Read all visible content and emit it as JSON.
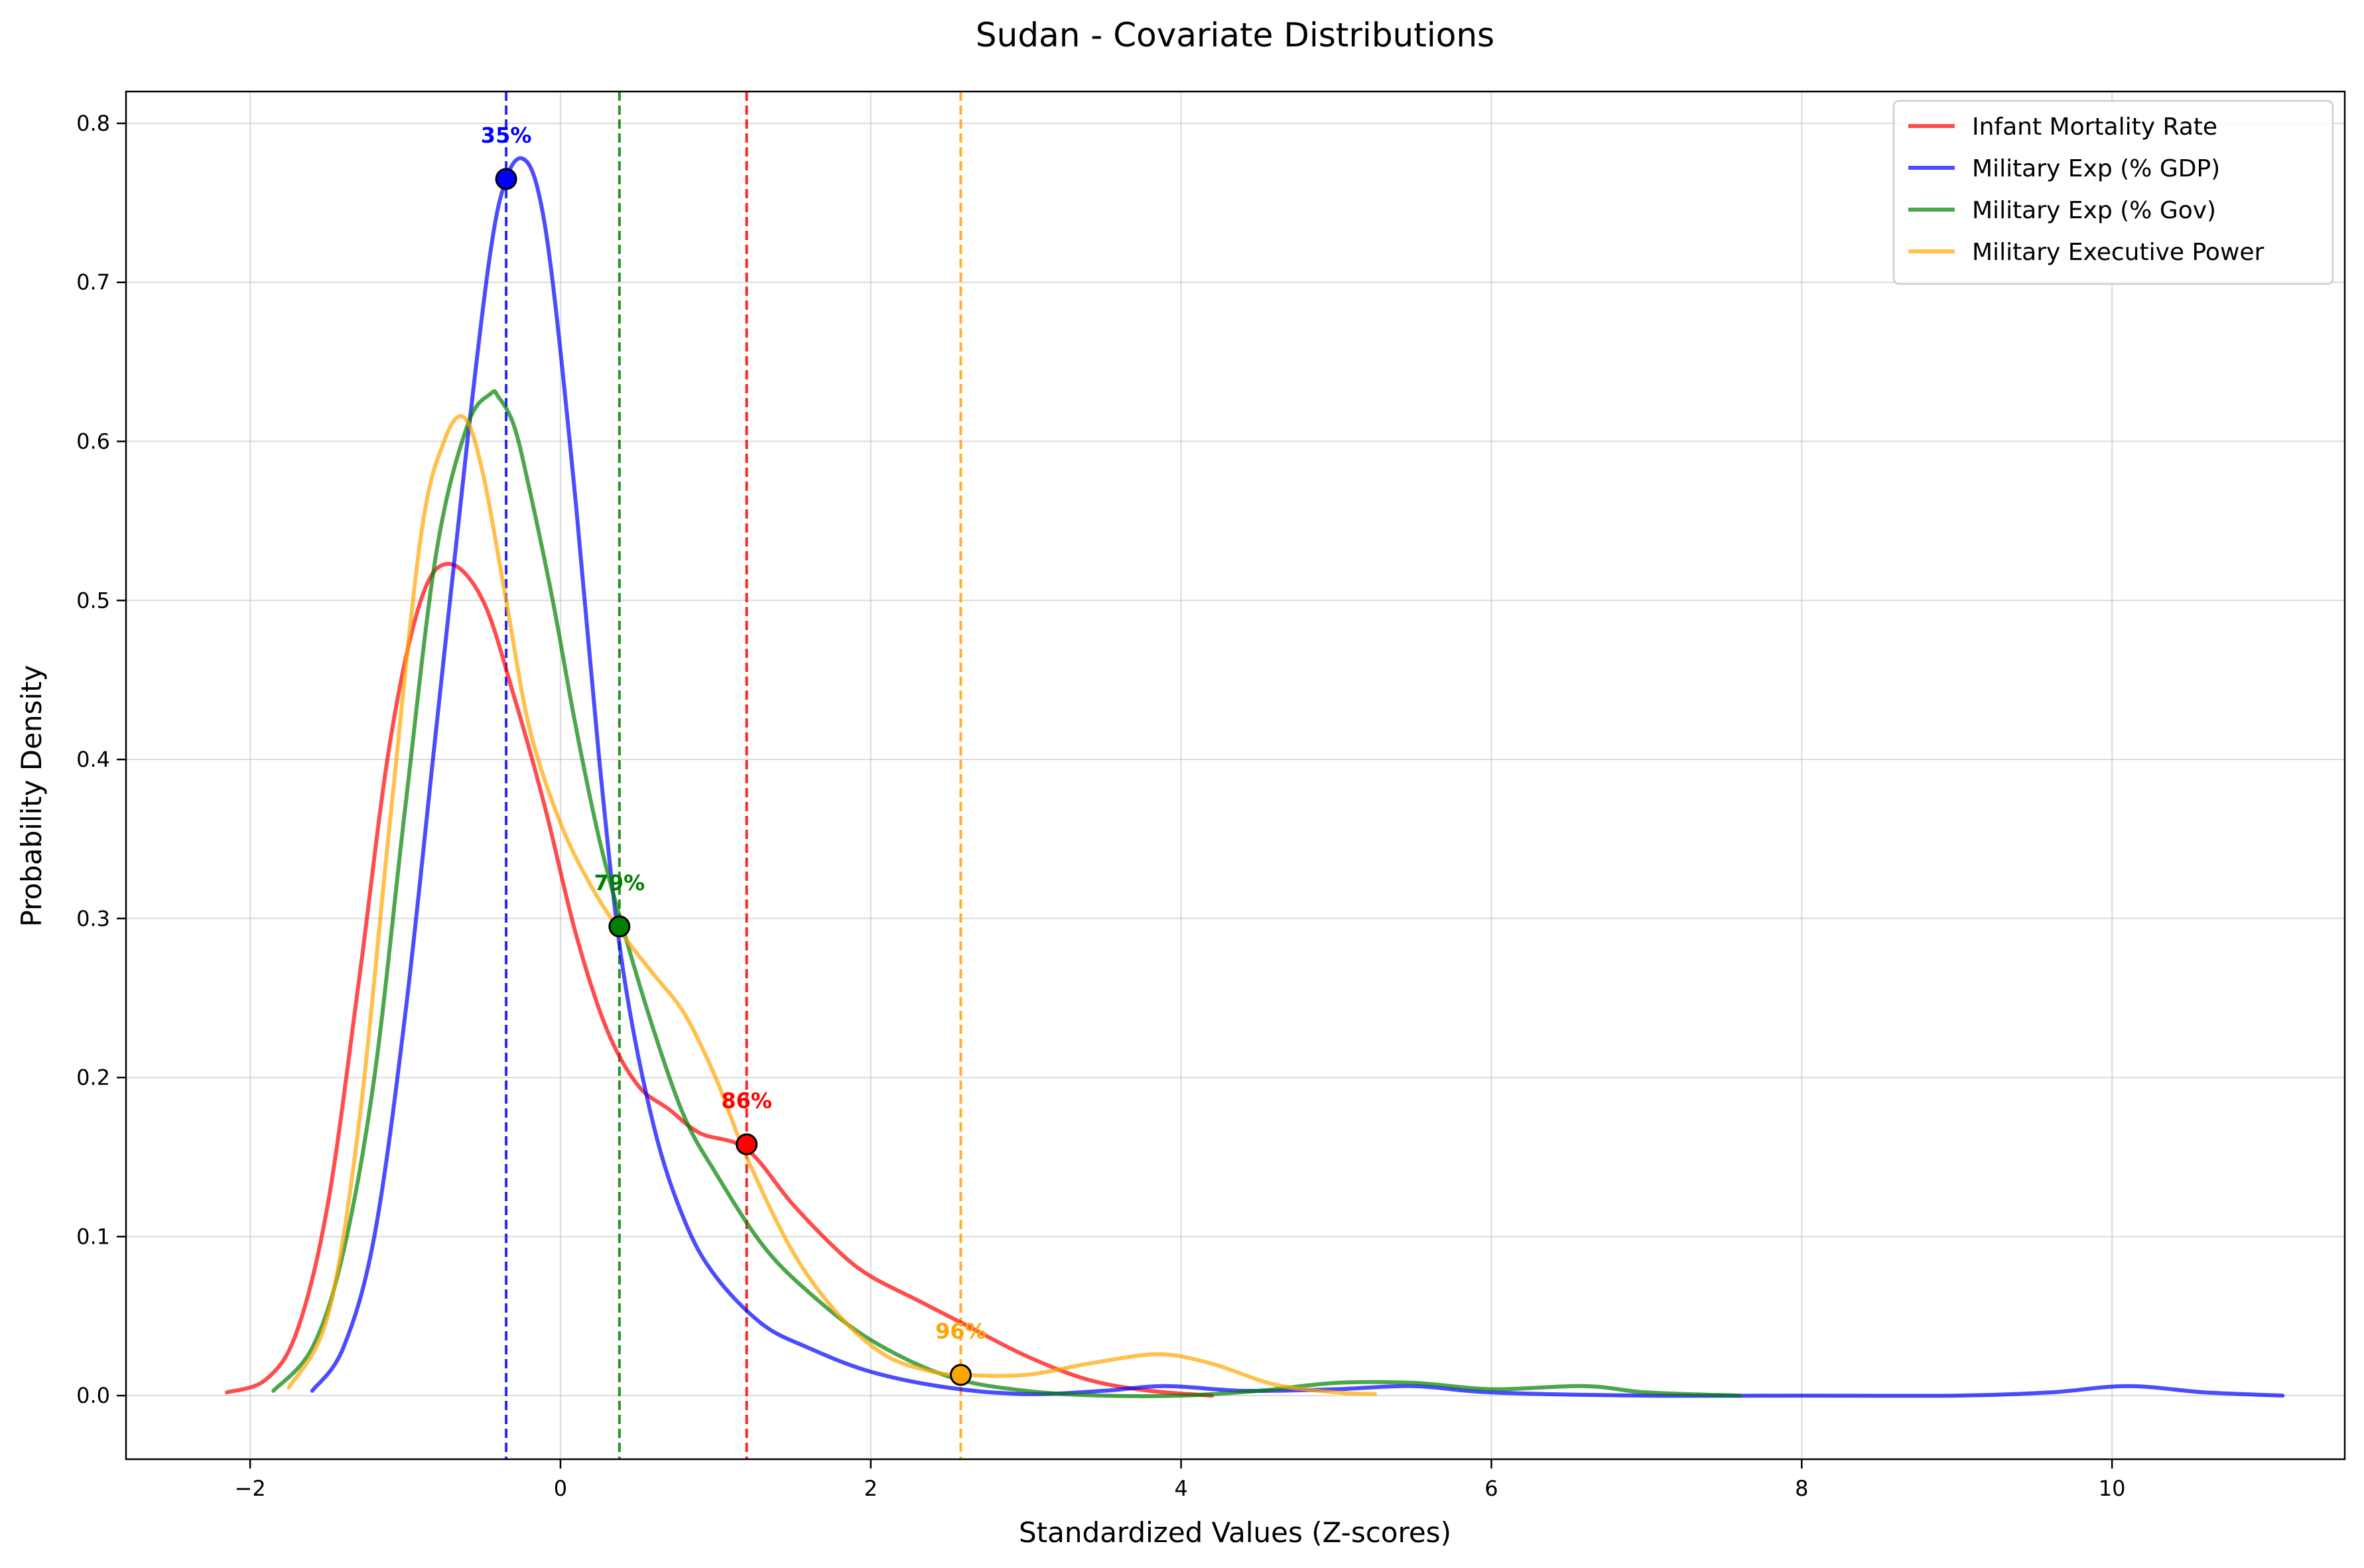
{
  "chart_data": {
    "type": "line",
    "title": "Sudan - Covariate Distributions",
    "xlabel": "Standardized Values (Z-scores)",
    "ylabel": "Probability Density",
    "xlim": [
      -2.8,
      11.5
    ],
    "ylim": [
      -0.04,
      0.82
    ],
    "xticks": [
      -2,
      0,
      2,
      4,
      6,
      8,
      10
    ],
    "xtick_labels": [
      "−2",
      "0",
      "2",
      "4",
      "6",
      "8",
      "10"
    ],
    "yticks": [
      0.0,
      0.1,
      0.2,
      0.3,
      0.4,
      0.5,
      0.6,
      0.7,
      0.8
    ],
    "ytick_labels": [
      "0.0",
      "0.1",
      "0.2",
      "0.3",
      "0.4",
      "0.5",
      "0.6",
      "0.7",
      "0.8"
    ],
    "grid": true,
    "legend_position": "top-right",
    "series": [
      {
        "name": "Infant Mortality Rate",
        "color": "#ff0000",
        "x": [
          -2.15,
          -1.9,
          -1.7,
          -1.5,
          -1.3,
          -1.1,
          -0.9,
          -0.72,
          -0.5,
          -0.3,
          -0.1,
          0.1,
          0.3,
          0.5,
          0.7,
          0.9,
          1.2,
          1.5,
          1.8,
          2.0,
          2.3,
          2.6,
          3.0,
          3.4,
          3.8,
          4.2
        ],
        "y": [
          0.002,
          0.01,
          0.04,
          0.12,
          0.26,
          0.41,
          0.5,
          0.523,
          0.5,
          0.44,
          0.37,
          0.29,
          0.23,
          0.195,
          0.18,
          0.165,
          0.155,
          0.12,
          0.09,
          0.075,
          0.06,
          0.045,
          0.025,
          0.01,
          0.003,
          0.0
        ],
        "marker": {
          "x": 1.2,
          "y": 0.158,
          "label": "86%"
        }
      },
      {
        "name": "Military Exp (% GDP)",
        "color": "#0000ff",
        "x": [
          -1.6,
          -1.4,
          -1.2,
          -1.0,
          -0.8,
          -0.6,
          -0.45,
          -0.35,
          -0.25,
          -0.15,
          -0.05,
          0.1,
          0.25,
          0.4,
          0.6,
          0.8,
          1.0,
          1.3,
          1.6,
          2.0,
          2.5,
          3.0,
          3.5,
          3.9,
          4.4,
          5.0,
          5.5,
          6.0,
          7.0,
          8.0,
          9.0,
          9.6,
          10.1,
          10.6,
          11.1
        ],
        "y": [
          0.003,
          0.03,
          0.1,
          0.24,
          0.42,
          0.6,
          0.72,
          0.765,
          0.778,
          0.76,
          0.7,
          0.56,
          0.4,
          0.27,
          0.17,
          0.11,
          0.075,
          0.045,
          0.03,
          0.015,
          0.005,
          0.001,
          0.003,
          0.006,
          0.003,
          0.004,
          0.006,
          0.002,
          0.0,
          0.0,
          0.0,
          0.002,
          0.006,
          0.002,
          0.0
        ],
        "marker": {
          "x": -0.35,
          "y": 0.765,
          "label": "35%"
        }
      },
      {
        "name": "Military Exp (% Gov)",
        "color": "#008000",
        "x": [
          -1.85,
          -1.6,
          -1.4,
          -1.2,
          -1.0,
          -0.8,
          -0.6,
          -0.45,
          -0.4,
          -0.3,
          -0.2,
          -0.05,
          0.1,
          0.25,
          0.4,
          0.6,
          0.8,
          1.0,
          1.3,
          1.6,
          2.0,
          2.5,
          3.0,
          3.5,
          4.0,
          4.5,
          5.0,
          5.5,
          6.0,
          6.6,
          7.0,
          7.6
        ],
        "y": [
          0.003,
          0.03,
          0.09,
          0.2,
          0.37,
          0.53,
          0.61,
          0.63,
          0.628,
          0.61,
          0.57,
          0.5,
          0.42,
          0.35,
          0.295,
          0.23,
          0.175,
          0.14,
          0.095,
          0.065,
          0.035,
          0.012,
          0.003,
          0.0,
          0.0,
          0.003,
          0.008,
          0.008,
          0.004,
          0.006,
          0.002,
          0.0
        ],
        "marker": {
          "x": 0.38,
          "y": 0.295,
          "label": "79%"
        }
      },
      {
        "name": "Military Executive Power",
        "color": "#ffa500",
        "x": [
          -1.75,
          -1.5,
          -1.3,
          -1.1,
          -0.9,
          -0.75,
          -0.62,
          -0.5,
          -0.35,
          -0.2,
          0.0,
          0.2,
          0.4,
          0.6,
          0.8,
          1.0,
          1.2,
          1.5,
          1.8,
          2.1,
          2.4,
          2.6,
          3.0,
          3.4,
          3.85,
          4.2,
          4.6,
          5.0,
          5.25
        ],
        "y": [
          0.005,
          0.05,
          0.17,
          0.36,
          0.54,
          0.6,
          0.615,
          0.58,
          0.5,
          0.42,
          0.36,
          0.32,
          0.29,
          0.265,
          0.24,
          0.2,
          0.15,
          0.09,
          0.05,
          0.025,
          0.015,
          0.013,
          0.013,
          0.02,
          0.026,
          0.02,
          0.007,
          0.002,
          0.001
        ],
        "marker": {
          "x": 2.58,
          "y": 0.013,
          "label": "96%"
        }
      }
    ]
  }
}
